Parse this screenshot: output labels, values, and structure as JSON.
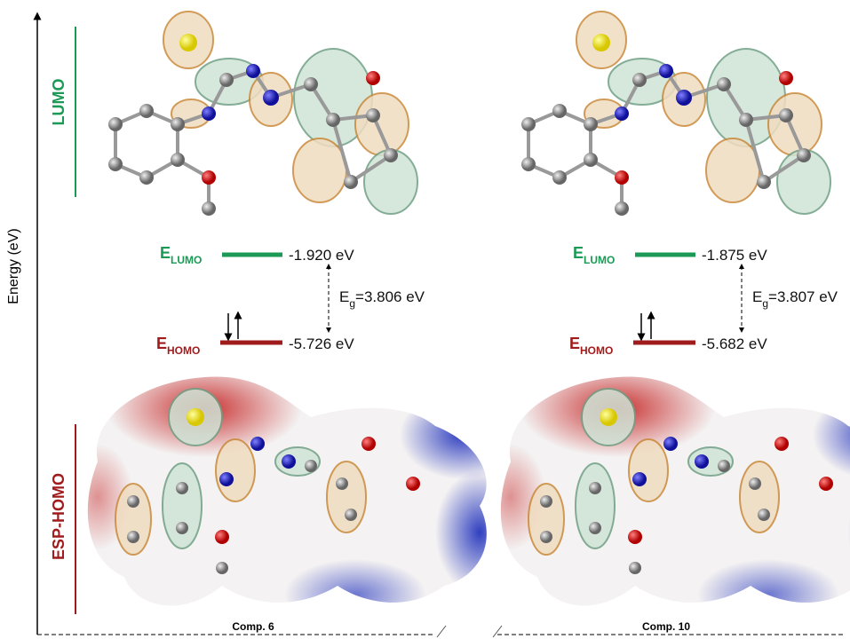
{
  "axis_label": "Energy (eV)",
  "side_labels": {
    "lumo": "LUMO",
    "esp_homo": "ESP-HOMO"
  },
  "compounds": [
    {
      "name": "Comp. 6",
      "lumo": {
        "symbol": "E",
        "subscript": "LUMO",
        "value": "-1.920 eV"
      },
      "gap": {
        "symbol": "E",
        "subscript": "g",
        "value": "=3.806 eV"
      },
      "homo": {
        "symbol": "E",
        "subscript": "HOMO",
        "value": "-5.726 eV"
      }
    },
    {
      "name": "Comp. 10",
      "lumo": {
        "symbol": "E",
        "subscript": "LUMO",
        "value": "-1.875 eV"
      },
      "gap": {
        "symbol": "E",
        "subscript": "g",
        "value": "=3.807 eV"
      },
      "homo": {
        "symbol": "E",
        "subscript": "HOMO",
        "value": "-5.682 eV"
      }
    }
  ]
}
